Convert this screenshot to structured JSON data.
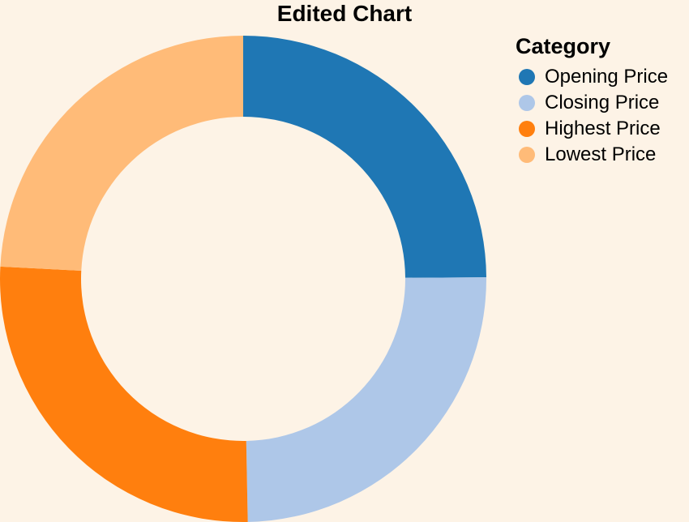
{
  "chart_data": {
    "type": "pie",
    "title": "Edited Chart",
    "legend_title": "Category",
    "legend_position": "top-right",
    "donut": true,
    "categories": [
      "Opening Price",
      "Closing Price",
      "Highest Price",
      "Lowest Price"
    ],
    "values": [
      24.9,
      24.8,
      26.1,
      24.2
    ],
    "colors": [
      "#1f77b4",
      "#aec7e8",
      "#ff7f0e",
      "#ffbb78"
    ]
  },
  "background": "#fdf3e6"
}
